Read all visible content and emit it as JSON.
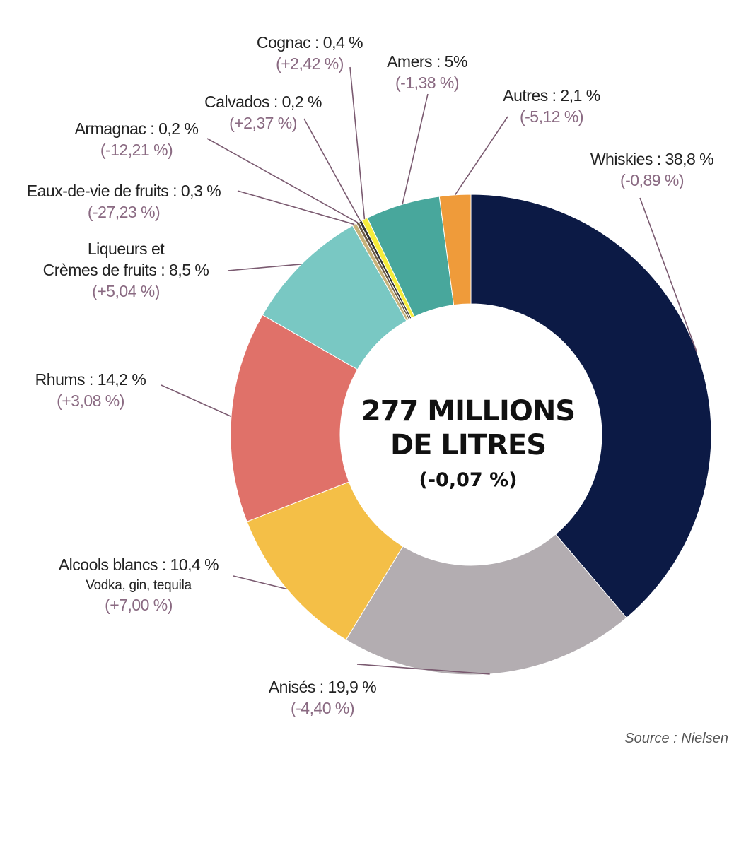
{
  "chart_data": {
    "type": "pie",
    "center": {
      "line1": "277 MILLIONS",
      "line2": "DE LITRES",
      "change": "(-0,07 %)"
    },
    "slices": [
      {
        "name": "Whiskies",
        "label": "Whiskies : 38,8 %",
        "value": 38.8,
        "change": "(-0,89 %)",
        "color": "#0c1a45"
      },
      {
        "name": "Anisés",
        "label": "Anisés : 19,9 %",
        "value": 19.9,
        "change": "(-4,40 %)",
        "color": "#b3adb1"
      },
      {
        "name": "Alcools blancs",
        "label": "Alcools blancs : 10,4 %",
        "sublabel": "Vodka, gin, tequila",
        "value": 10.4,
        "change": "(+7,00 %)",
        "color": "#f4bf47"
      },
      {
        "name": "Rhums",
        "label": "Rhums : 14,2 %",
        "value": 14.2,
        "change": "(+3,08 %)",
        "color": "#e07169"
      },
      {
        "name": "Liqueurs et Crèmes de fruits",
        "label_line1": "Liqueurs et",
        "label": "Crèmes de fruits : 8,5 %",
        "value": 8.5,
        "change": "(+5,04 %)",
        "color": "#79c8c3"
      },
      {
        "name": "Eaux-de-vie de fruits",
        "label": "Eaux-de-vie de fruits : 0,3 %",
        "value": 0.3,
        "change": "(-27,23 %)",
        "color": "#c7b27a"
      },
      {
        "name": "Armagnac",
        "label": "Armagnac : 0,2 %",
        "value": 0.2,
        "change": "(-12,21 %)",
        "color": "#6b5a45"
      },
      {
        "name": "Calvados",
        "label": "Calvados : 0,2 %",
        "value": 0.2,
        "change": "(+2,37 %)",
        "color": "#333333"
      },
      {
        "name": "Cognac",
        "label": "Cognac : 0,4 %",
        "value": 0.4,
        "change": "(+2,42 %)",
        "color": "#f6ec3c"
      },
      {
        "name": "Amers",
        "label": "Amers : 5%",
        "value": 5,
        "change": "(-1,38 %)",
        "color": "#48a79c"
      },
      {
        "name": "Autres",
        "label": "Autres : 2,1 %",
        "value": 2.1,
        "change": "(-5,12 %)",
        "color": "#ef9b3a"
      }
    ],
    "source": "Source : Nielsen"
  }
}
